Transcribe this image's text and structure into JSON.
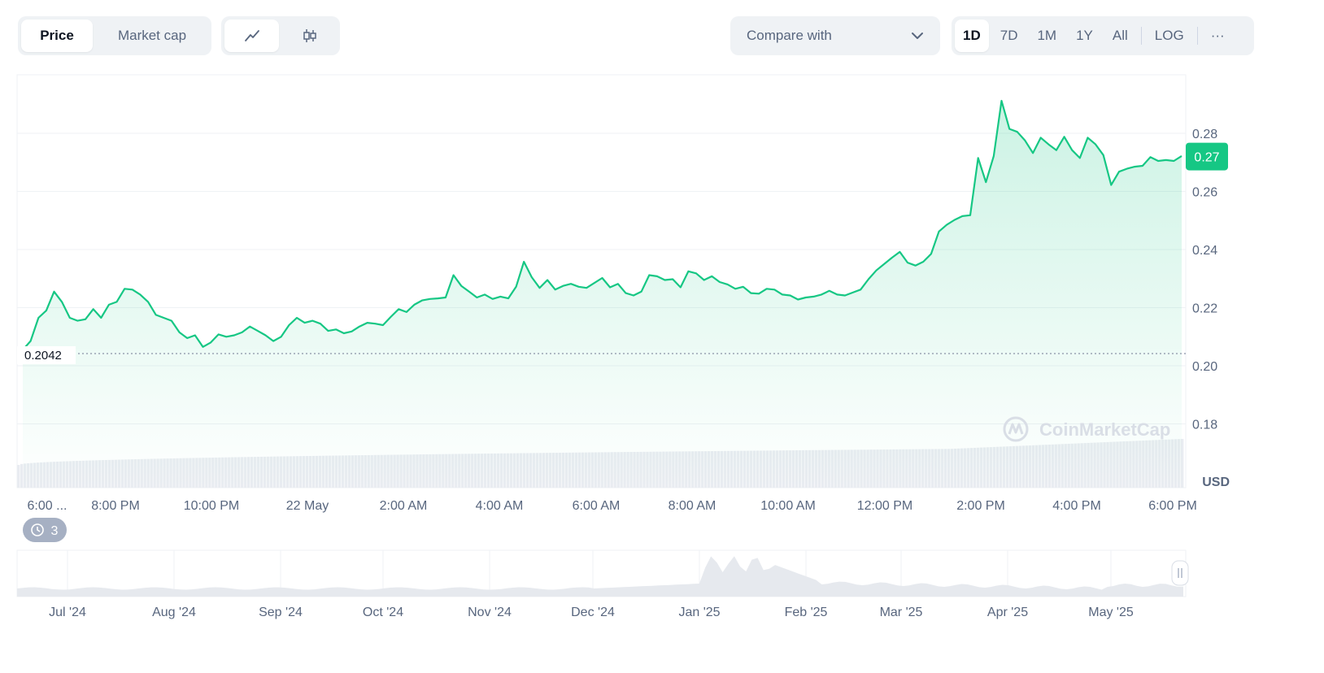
{
  "controls": {
    "type_tabs": [
      "Price",
      "Market cap"
    ],
    "active_type": "Price",
    "style_tabs": [
      "line-chart-icon",
      "candlestick-icon"
    ],
    "compare_label": "Compare with",
    "range_tabs": [
      "1D",
      "7D",
      "1M",
      "1Y",
      "All"
    ],
    "active_range": "1D",
    "log_label": "LOG",
    "more_label": "···"
  },
  "chart_data": {
    "type": "area",
    "currency_label": "USD",
    "y_ticks": [
      0.18,
      0.2,
      0.22,
      0.24,
      0.26,
      0.28
    ],
    "ylim": [
      0.16,
      0.3
    ],
    "x_tick_labels": [
      "6:00 ...",
      "8:00 PM",
      "10:00 PM",
      "22 May",
      "2:00 AM",
      "4:00 AM",
      "6:00 AM",
      "8:00 AM",
      "10:00 AM",
      "12:00 PM",
      "2:00 PM",
      "4:00 PM",
      "6:00 PM"
    ],
    "open_price_label": "0.2042",
    "open_price": 0.2042,
    "current_price_label": "0.27",
    "current_price": 0.272,
    "watermark": "CoinMarketCap",
    "line_color": "#16c784",
    "series": [
      {
        "values": [
          0.2055,
          0.2085,
          0.2165,
          0.219,
          0.2255,
          0.222,
          0.2165,
          0.2155,
          0.216,
          0.2195,
          0.2165,
          0.221,
          0.222,
          0.2265,
          0.2262,
          0.2245,
          0.222,
          0.2175,
          0.2165,
          0.2155,
          0.2115,
          0.2095,
          0.2105,
          0.2065,
          0.208,
          0.2108,
          0.21,
          0.2105,
          0.2115,
          0.2135,
          0.212,
          0.2105,
          0.2085,
          0.21,
          0.214,
          0.2165,
          0.2148,
          0.2155,
          0.2145,
          0.212,
          0.2125,
          0.2112,
          0.2118,
          0.2135,
          0.2148,
          0.2145,
          0.214,
          0.2168,
          0.2195,
          0.2185,
          0.221,
          0.2225,
          0.223,
          0.2232,
          0.2235,
          0.2312,
          0.2275,
          0.2255,
          0.2235,
          0.2245,
          0.223,
          0.2238,
          0.2232,
          0.2272,
          0.2358,
          0.2305,
          0.2268,
          0.2295,
          0.2262,
          0.2275,
          0.2282,
          0.2272,
          0.2268,
          0.2285,
          0.2302,
          0.227,
          0.2282,
          0.225,
          0.2242,
          0.2255,
          0.2312,
          0.2308,
          0.2295,
          0.2298,
          0.227,
          0.2325,
          0.2318,
          0.2295,
          0.2308,
          0.2288,
          0.228,
          0.2265,
          0.2272,
          0.225,
          0.2248,
          0.2265,
          0.2262,
          0.2245,
          0.2242,
          0.2228,
          0.2235,
          0.2238,
          0.2245,
          0.2258,
          0.2245,
          0.2242,
          0.2252,
          0.2262,
          0.2298,
          0.2328,
          0.235,
          0.2372,
          0.2392,
          0.2355,
          0.2345,
          0.2358,
          0.2385,
          0.2462,
          0.2485,
          0.2502,
          0.2515,
          0.2518,
          0.2715,
          0.2632,
          0.2722,
          0.2912,
          0.2815,
          0.2805,
          0.2775,
          0.2732,
          0.2785,
          0.2762,
          0.2742,
          0.2788,
          0.2742,
          0.2715,
          0.2785,
          0.2762,
          0.2725,
          0.2622,
          0.2668,
          0.2678,
          0.2685,
          0.2688,
          0.2718,
          0.2705,
          0.2708,
          0.2705,
          0.2722
        ]
      }
    ]
  },
  "navigator": {
    "month_labels": [
      "Jul '24",
      "Aug '24",
      "Sep '24",
      "Oct '24",
      "Nov '24",
      "Dec '24",
      "Jan '25",
      "Feb '25",
      "Mar '25",
      "Apr '25",
      "May '25"
    ],
    "history_badge": "3"
  }
}
